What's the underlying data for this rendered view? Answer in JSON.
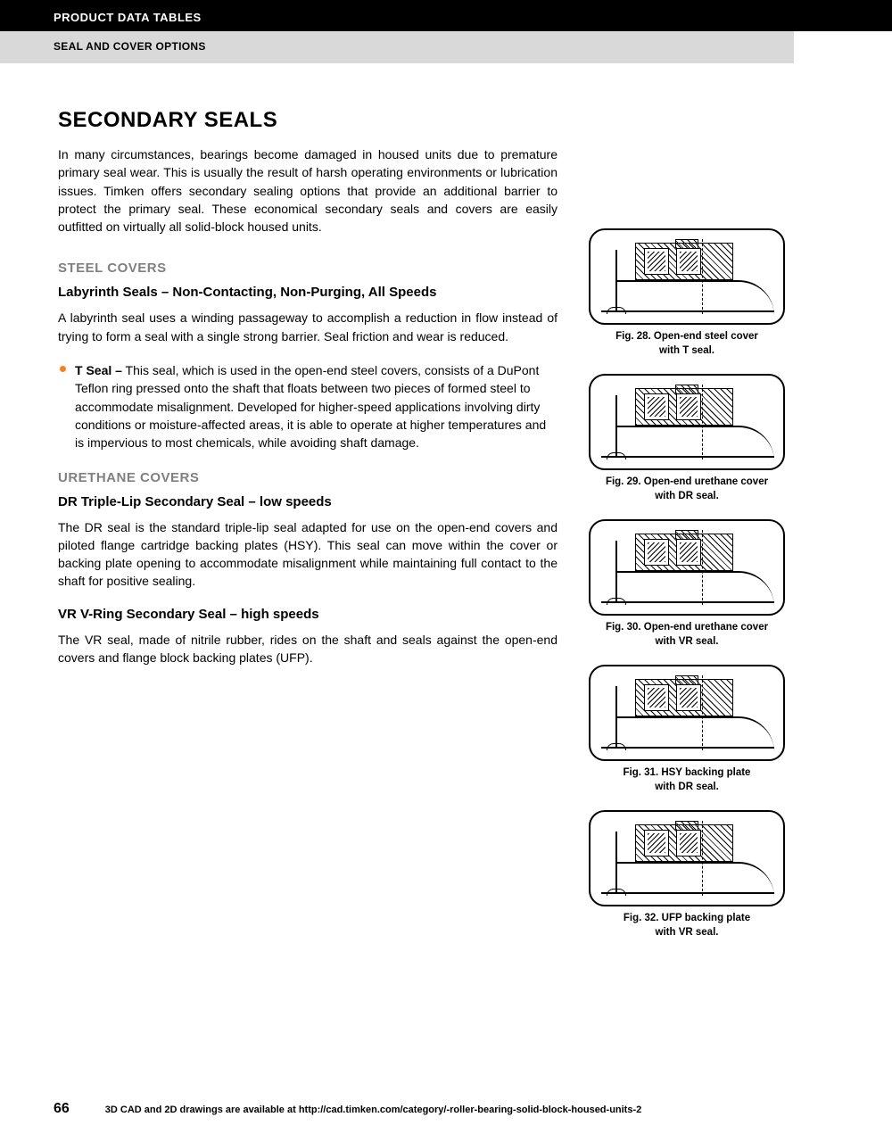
{
  "header": {
    "top": "PRODUCT DATA TABLES",
    "sub": "SEAL AND COVER OPTIONS"
  },
  "title": "SECONDARY SEALS",
  "intro": "In many circumstances, bearings become damaged in housed units due to premature primary seal wear. This is usually the result of harsh operating environments or lubrication issues. Timken offers secondary sealing options that provide an additional barrier to protect the primary seal. These economical secondary seals and covers are easily outfitted on virtually all solid-block housed units.",
  "sections": {
    "steel": {
      "heading": "STEEL COVERS",
      "sub": "Labyrinth Seals – Non-Contacting, Non-Purging, All Speeds",
      "para": "A labyrinth seal uses a winding passageway to accomplish a reduction in flow instead of trying to form a seal with a single strong barrier. Seal friction and wear is reduced.",
      "bullet_label": "T Seal –",
      "bullet_text": " This seal, which is used in the open-end steel covers, consists of a DuPont Teflon ring pressed onto the shaft that floats between two pieces of formed steel to accommodate misalignment. Developed for higher-speed applications involving dirty conditions or moisture-affected areas, it is able to operate at higher temperatures and is impervious to most chemicals, while avoiding shaft damage."
    },
    "urethane": {
      "heading": "URETHANE COVERS",
      "dr_sub": "DR Triple-Lip Secondary Seal – low speeds",
      "dr_para": "The DR seal is the standard triple-lip seal adapted for use on the open-end covers and piloted flange cartridge backing plates (HSY). This seal can move within the cover or backing plate opening to accommodate misalignment while maintaining full contact to the shaft for positive sealing.",
      "vr_sub": "VR V-Ring Secondary Seal – high speeds",
      "vr_para": "The VR seal, made of nitrile rubber, rides on the shaft and seals against the open-end covers and flange block backing plates (UFP)."
    }
  },
  "figures": [
    {
      "line1": "Fig. 28. Open-end steel cover",
      "line2": "with T seal."
    },
    {
      "line1": "Fig. 29. Open-end urethane cover",
      "line2": "with DR seal."
    },
    {
      "line1": "Fig. 30. Open-end urethane cover",
      "line2": "with VR seal."
    },
    {
      "line1": "Fig. 31. HSY backing plate",
      "line2": "with DR seal."
    },
    {
      "line1": "Fig. 32. UFP backing plate",
      "line2": "with VR seal."
    }
  ],
  "footer": {
    "page": "66",
    "text": "3D CAD and 2D drawings are available at http://cad.timken.com/category/-roller-bearing-solid-block-housed-units-2"
  },
  "colors": {
    "accent": "#f58220",
    "gray_heading": "#808080",
    "header_gray": "#d9d9d9"
  }
}
